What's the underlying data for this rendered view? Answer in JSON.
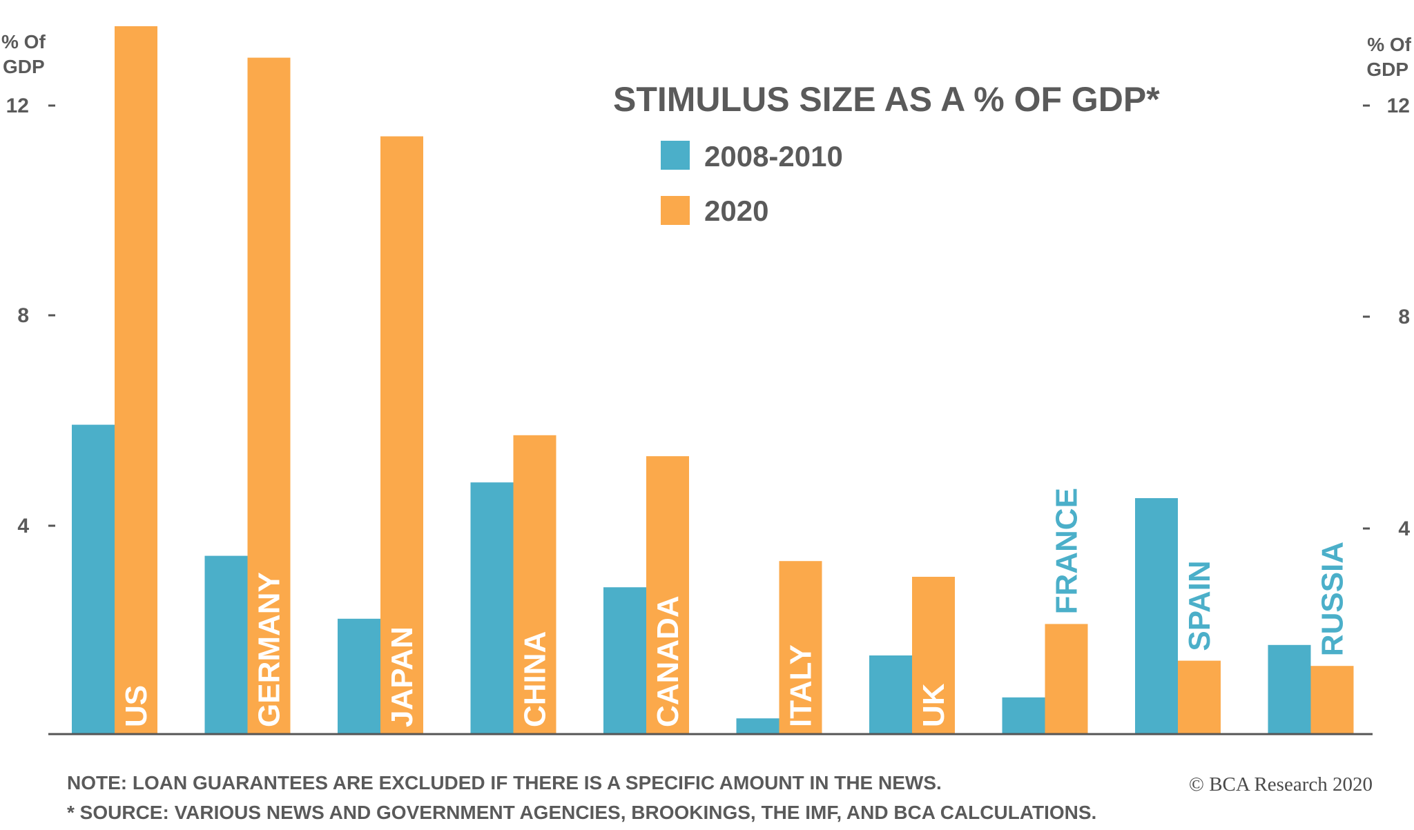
{
  "chart_data": {
    "type": "bar",
    "title": "STIMULUS SIZE AS A % OF GDP*",
    "ylabel": "% Of GDP",
    "ylabel_lines": [
      "% Of",
      "GDP"
    ],
    "ylim": [
      0,
      13.5
    ],
    "yticks": [
      4,
      8,
      12
    ],
    "grid": false,
    "legend_position": "top-center",
    "categories": [
      "US",
      "GERMANY",
      "JAPAN",
      "CHINA",
      "CANADA",
      "ITALY",
      "UK",
      "FRANCE",
      "SPAIN",
      "RUSSIA"
    ],
    "series": [
      {
        "name": "2008-2010",
        "color": "#4bafc9",
        "values": [
          5.9,
          3.4,
          2.2,
          4.8,
          2.8,
          0.3,
          1.5,
          0.7,
          4.5,
          1.7
        ]
      },
      {
        "name": "2020",
        "color": "#fba94b",
        "values": [
          13.5,
          12.9,
          11.4,
          5.7,
          5.3,
          3.3,
          3.0,
          2.1,
          1.4,
          1.3
        ]
      }
    ]
  },
  "notes": {
    "line1": "NOTE: LOAN GUARANTEES ARE EXCLUDED IF THERE IS A SPECIFIC AMOUNT IN THE NEWS.",
    "line2": "* SOURCE: VARIOUS NEWS AND GOVERNMENT AGENCIES, BROOKINGS, THE IMF, AND BCA CALCULATIONS."
  },
  "credit": "© BCA Research 2020",
  "colors": {
    "text": "#5a5a5a",
    "axis": "#555555",
    "label_on_bar": "#ffffff"
  }
}
